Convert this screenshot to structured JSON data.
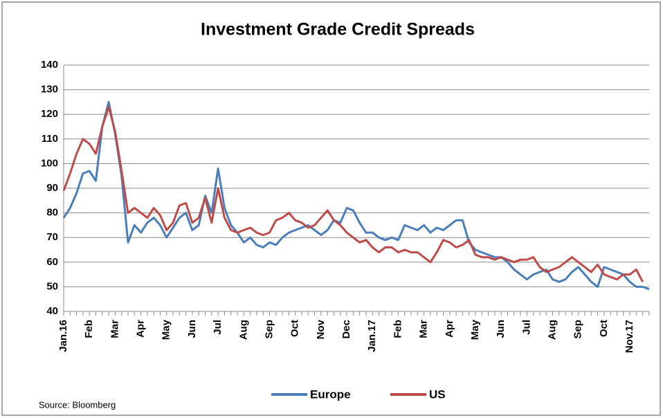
{
  "chart_data": {
    "type": "line",
    "title": "Investment Grade Credit Spreads",
    "source": "Source: Bloomberg",
    "categories": [
      "Jan.16",
      null,
      null,
      null,
      "Feb",
      null,
      null,
      null,
      "Mar",
      null,
      null,
      null,
      "Apr",
      null,
      null,
      null,
      "May",
      null,
      null,
      null,
      "Jun",
      null,
      null,
      null,
      "Jul",
      null,
      null,
      null,
      "Aug",
      null,
      null,
      null,
      "Sep",
      null,
      null,
      null,
      "Oct",
      null,
      null,
      null,
      "Nov",
      null,
      null,
      null,
      "Dec",
      null,
      null,
      null,
      "Jan.17",
      null,
      null,
      null,
      "Feb",
      null,
      null,
      null,
      "Mar",
      null,
      null,
      null,
      "Apr",
      null,
      null,
      null,
      "May",
      null,
      null,
      null,
      "Jun",
      null,
      null,
      null,
      "Jul",
      null,
      null,
      null,
      "Aug",
      null,
      null,
      null,
      "Sep",
      null,
      null,
      null,
      "Oct",
      null,
      null,
      null,
      "Nov.17",
      null,
      null,
      null
    ],
    "series": [
      {
        "name": "Europe",
        "color": "#4a7ebb",
        "values": [
          78,
          82,
          88,
          96,
          97,
          93,
          115,
          125,
          112,
          95,
          68,
          75,
          72,
          76,
          78,
          75,
          70,
          74,
          78,
          80,
          73,
          75,
          87,
          80,
          98,
          82,
          75,
          72,
          68,
          70,
          67,
          66,
          68,
          67,
          70,
          72,
          73,
          74,
          75,
          73,
          71,
          73,
          77,
          76,
          82,
          81,
          76,
          72,
          72,
          70,
          69,
          70,
          69,
          75,
          74,
          73,
          75,
          72,
          74,
          73,
          75,
          77,
          77,
          68,
          65,
          64,
          63,
          62,
          62,
          60,
          57,
          55,
          53,
          55,
          56,
          57,
          53,
          52,
          53,
          56,
          58,
          55,
          52,
          50,
          58,
          57,
          56,
          55,
          52,
          50,
          50,
          49
        ]
      },
      {
        "name": "US",
        "color": "#be4b48",
        "values": [
          89,
          96,
          104,
          110,
          108,
          104,
          115,
          123,
          113,
          97,
          80,
          82,
          80,
          78,
          82,
          79,
          73,
          76,
          83,
          84,
          76,
          78,
          86,
          76,
          90,
          78,
          73,
          72,
          73,
          74,
          72,
          71,
          72,
          77,
          78,
          80,
          77,
          76,
          74,
          75,
          78,
          81,
          77,
          75,
          72,
          70,
          68,
          69,
          66,
          64,
          66,
          66,
          64,
          65,
          64,
          64,
          62,
          60,
          64,
          69,
          68,
          66,
          67,
          69,
          63,
          62,
          62,
          61,
          62,
          61,
          60,
          61,
          61,
          62,
          58,
          56,
          57,
          58,
          60,
          62,
          60,
          58,
          56,
          59,
          55,
          54,
          53,
          55,
          55,
          57,
          52,
          null
        ]
      }
    ],
    "ylim": [
      40,
      140
    ],
    "yticks": [
      40,
      50,
      60,
      70,
      80,
      90,
      100,
      110,
      120,
      130,
      140
    ],
    "grid": true
  }
}
